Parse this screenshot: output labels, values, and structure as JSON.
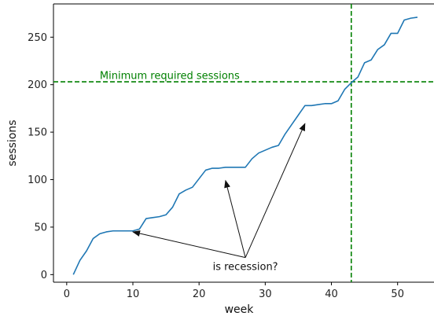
{
  "chart_data": {
    "type": "line",
    "xlabel": "week",
    "ylabel": "sessions",
    "xlim": [
      -2,
      55.5
    ],
    "ylim": [
      -8,
      285
    ],
    "xticks": [
      0,
      10,
      20,
      30,
      40,
      50
    ],
    "yticks": [
      0,
      50,
      100,
      150,
      200,
      250
    ],
    "grid": false,
    "series": [
      {
        "color": "#1f77b4",
        "x": [
          1,
          2,
          3,
          4,
          5,
          6,
          7,
          8,
          9,
          10,
          11,
          12,
          13,
          14,
          15,
          16,
          17,
          18,
          19,
          20,
          21,
          22,
          23,
          24,
          25,
          26,
          27,
          28,
          29,
          30,
          31,
          32,
          33,
          34,
          35,
          36,
          37,
          38,
          39,
          40,
          41,
          42,
          43,
          44,
          45,
          46,
          47,
          48,
          49,
          50,
          51,
          52,
          53
        ],
        "y": [
          0,
          15,
          25,
          38,
          43,
          45,
          46,
          46,
          46,
          46,
          48,
          59,
          60,
          61,
          63,
          71,
          85,
          89,
          92,
          101,
          110,
          112,
          112,
          113,
          113,
          113,
          113,
          122,
          128,
          131,
          134,
          136,
          148,
          158,
          168,
          178,
          178,
          179,
          180,
          180,
          183,
          195,
          202,
          208,
          223,
          226,
          237,
          242,
          254,
          254,
          268,
          270,
          271
        ]
      }
    ],
    "reference_lines": [
      {
        "orientation": "horizontal",
        "value": 203,
        "color": "#008000",
        "style": "dashed",
        "label": "Minimum required sessions",
        "label_x": 5,
        "label_y": 206
      },
      {
        "orientation": "vertical",
        "value": 43,
        "color": "#008000",
        "style": "dashed"
      }
    ],
    "annotations": [
      {
        "text": "is recession?",
        "text_x": 27,
        "text_y": 8,
        "targets": [
          [
            10,
            45
          ],
          [
            24,
            99
          ],
          [
            36,
            159
          ]
        ]
      }
    ]
  }
}
